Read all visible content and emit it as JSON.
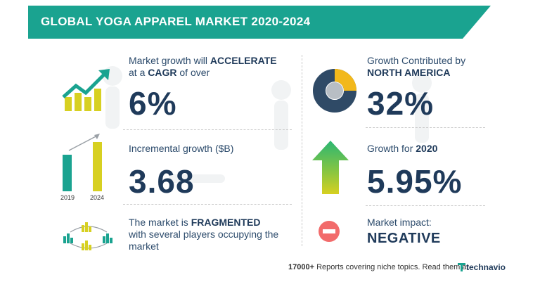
{
  "header": {
    "title": "GLOBAL YOGA APPAREL MARKET 2020-2024"
  },
  "left": {
    "growth": {
      "line1_pre": "Market growth will ",
      "line1_bold": "ACCELERATE",
      "line2_pre": "at a ",
      "line2_bold": "CAGR",
      "line2_post": " of over",
      "value": "6%"
    },
    "incremental": {
      "label": "Incremental growth ($B)",
      "value": "3.68",
      "year_start": "2019",
      "year_end": "2024"
    },
    "fragmented": {
      "line1_pre": "The market is ",
      "line1_bold": "FRAGMENTED",
      "line2": "with several players occupying the",
      "line3": "market"
    }
  },
  "right": {
    "region": {
      "line1": "Growth Contributed by",
      "line2": "NORTH AMERICA",
      "value": "32%"
    },
    "yoy": {
      "label_pre": "Growth for ",
      "label_bold": "2020",
      "value": "5.95%"
    },
    "impact": {
      "label": "Market impact:",
      "value": "NEGATIVE"
    }
  },
  "footer": {
    "count": "17000+",
    "text": " Reports covering niche topics. Read them at",
    "brand_icon": "technavio-t-icon",
    "brand": "technavio"
  },
  "colors": {
    "teal": "#1aa390",
    "navy": "#1f3a5a",
    "yellow": "#d7d021",
    "green": "#2bb673",
    "red": "#f26b6b"
  }
}
